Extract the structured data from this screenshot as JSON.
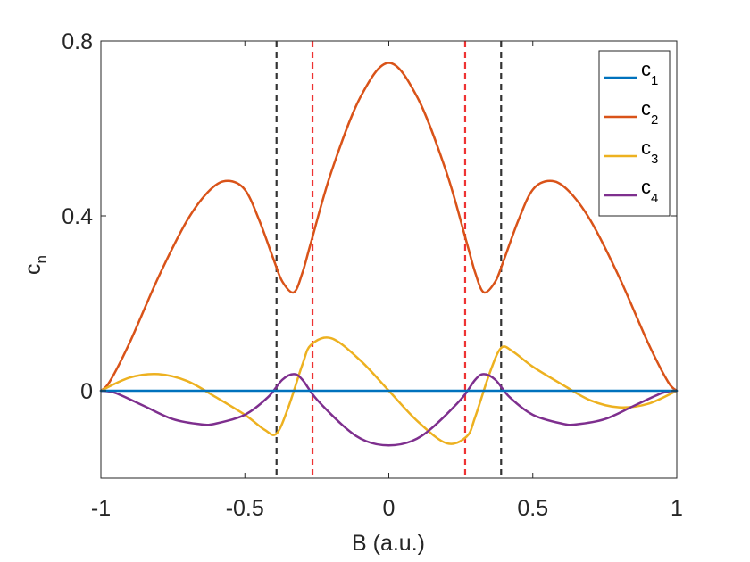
{
  "chart_data": {
    "type": "line",
    "title": "",
    "xlabel": "B (a.u.)",
    "ylabel": {
      "main": "c",
      "sub": "n"
    },
    "xlim": [
      -1,
      1
    ],
    "ylim": [
      -0.2,
      0.8
    ],
    "xticks": [
      -1,
      -0.5,
      0,
      0.5,
      1
    ],
    "xtick_labels": [
      "-1",
      "-0.5",
      "0",
      "0.5",
      "1"
    ],
    "yticks": [
      0,
      0.4,
      0.8
    ],
    "ytick_labels": [
      "0",
      "0.4",
      "0.8"
    ],
    "grid": false,
    "legend_position": "top-right",
    "vlines": [
      {
        "x": -0.39,
        "color": "#333333",
        "style": "dashed"
      },
      {
        "x": -0.265,
        "color": "#ee3333",
        "style": "dashed"
      },
      {
        "x": 0.265,
        "color": "#ee3333",
        "style": "dashed"
      },
      {
        "x": 0.39,
        "color": "#333333",
        "style": "dashed"
      }
    ],
    "series": [
      {
        "name": "c1",
        "label_main": "c",
        "label_sub": "1",
        "color": "#0072BD",
        "x": [
          -1,
          1
        ],
        "y": [
          0,
          0
        ]
      },
      {
        "name": "c2",
        "label_main": "c",
        "label_sub": "2",
        "color": "#D95319",
        "x": [
          -1,
          -0.97,
          -0.9,
          -0.8,
          -0.7,
          -0.62,
          -0.56,
          -0.5,
          -0.45,
          -0.4,
          -0.37,
          -0.33,
          -0.3,
          -0.27,
          -0.2,
          -0.1,
          0,
          0.1,
          0.2,
          0.27,
          0.3,
          0.33,
          0.37,
          0.4,
          0.45,
          0.5,
          0.56,
          0.62,
          0.7,
          0.8,
          0.9,
          0.97,
          1
        ],
        "y": [
          0,
          0.02,
          0.11,
          0.26,
          0.39,
          0.46,
          0.48,
          0.46,
          0.39,
          0.3,
          0.25,
          0.225,
          0.27,
          0.34,
          0.5,
          0.67,
          0.75,
          0.67,
          0.5,
          0.34,
          0.27,
          0.225,
          0.25,
          0.3,
          0.39,
          0.46,
          0.48,
          0.46,
          0.39,
          0.26,
          0.11,
          0.02,
          0
        ]
      },
      {
        "name": "c3",
        "label_main": "c",
        "label_sub": "3",
        "color": "#EDB120",
        "x": [
          -1,
          -0.9,
          -0.8,
          -0.7,
          -0.6,
          -0.5,
          -0.43,
          -0.39,
          -0.35,
          -0.3,
          -0.27,
          -0.2,
          -0.1,
          0,
          0.1,
          0.2,
          0.27,
          0.3,
          0.35,
          0.39,
          0.43,
          0.5,
          0.6,
          0.7,
          0.8,
          0.9,
          1
        ],
        "y": [
          0,
          0.03,
          0.038,
          0.022,
          -0.015,
          -0.055,
          -0.09,
          -0.098,
          -0.04,
          0.06,
          0.105,
          0.12,
          0.07,
          0,
          -0.07,
          -0.12,
          -0.105,
          -0.06,
          0.04,
          0.098,
          0.09,
          0.055,
          0.015,
          -0.022,
          -0.038,
          -0.03,
          0
        ]
      },
      {
        "name": "c4",
        "label_main": "c",
        "label_sub": "4",
        "color": "#7E2F8E",
        "x": [
          -1,
          -0.95,
          -0.85,
          -0.75,
          -0.65,
          -0.6,
          -0.5,
          -0.42,
          -0.37,
          -0.33,
          -0.3,
          -0.25,
          -0.15,
          -0.08,
          0,
          0.08,
          0.15,
          0.25,
          0.3,
          0.33,
          0.37,
          0.42,
          0.5,
          0.6,
          0.65,
          0.75,
          0.85,
          0.95,
          1
        ],
        "y": [
          0,
          -0.005,
          -0.035,
          -0.065,
          -0.077,
          -0.075,
          -0.055,
          -0.015,
          0.025,
          0.038,
          0.025,
          -0.02,
          -0.085,
          -0.115,
          -0.125,
          -0.115,
          -0.085,
          -0.02,
          0.025,
          0.038,
          0.025,
          -0.015,
          -0.055,
          -0.075,
          -0.077,
          -0.065,
          -0.035,
          -0.005,
          0
        ]
      }
    ]
  }
}
